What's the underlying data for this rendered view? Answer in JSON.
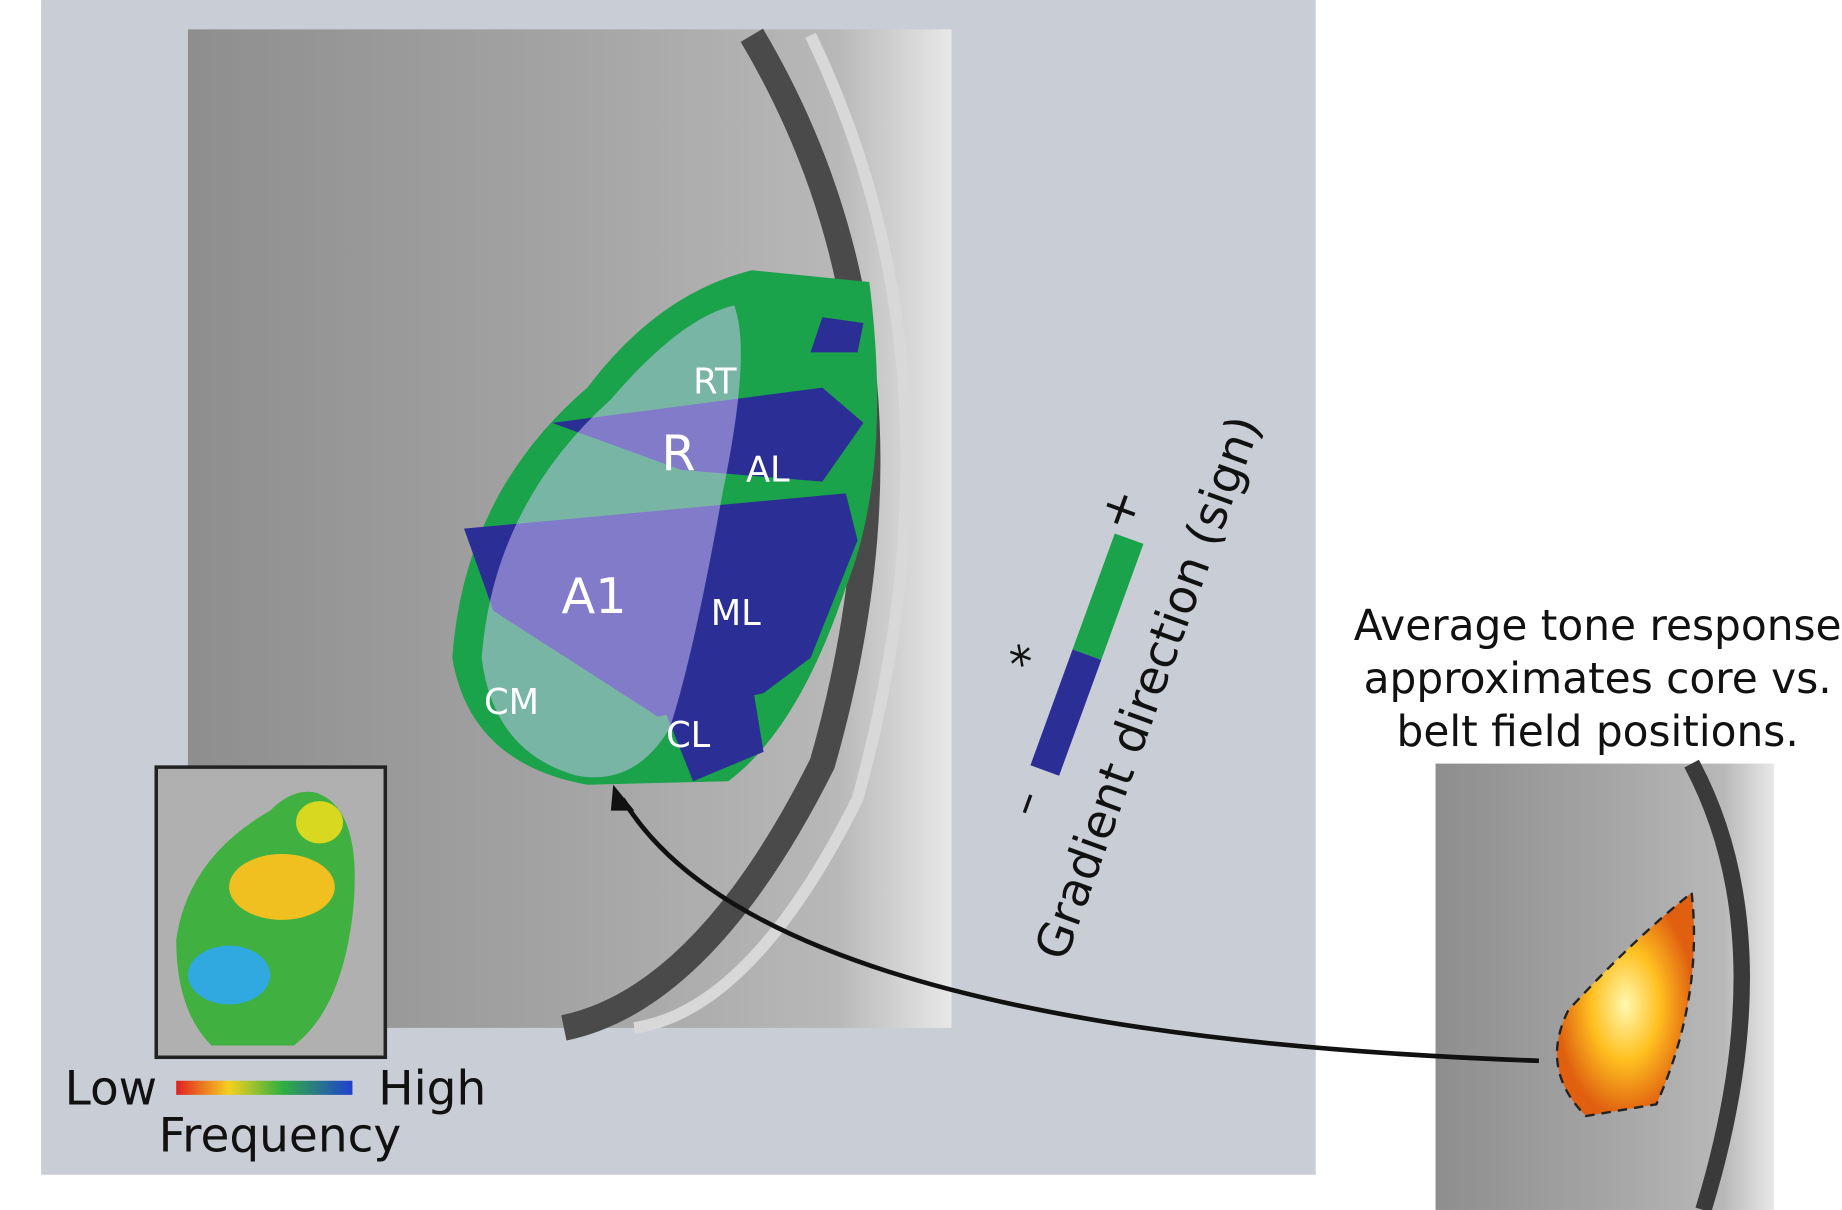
{
  "regions": [
    {
      "label": "RT"
    },
    {
      "label": "R"
    },
    {
      "label": "AL"
    },
    {
      "label": "A1"
    },
    {
      "label": "ML"
    },
    {
      "label": "CM"
    },
    {
      "label": "CL"
    }
  ],
  "gradient_legend": {
    "plus": "+",
    "star": "*",
    "minus": "–",
    "label": "Gradient direction (sign)"
  },
  "inset_legend": {
    "low": "Low",
    "high": "High",
    "title": "Frequency"
  },
  "caption": {
    "lines": [
      "Average tone response",
      "approximates core vs.",
      "belt field positions."
    ]
  }
}
